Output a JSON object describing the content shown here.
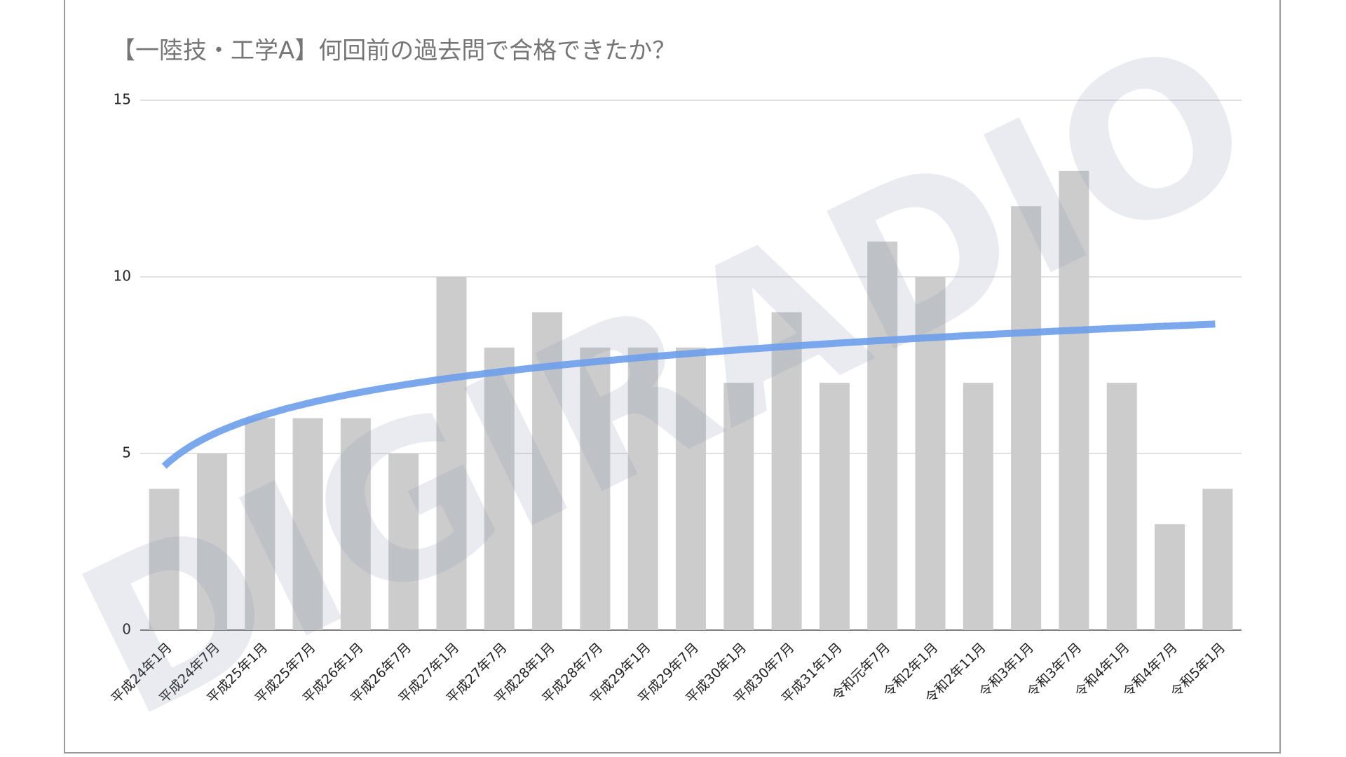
{
  "chart_data": {
    "type": "bar",
    "title": "【一陸技・工学A】何回前の過去問で合格できたか？",
    "categories": [
      "平成24年1月",
      "平成24年7月",
      "平成25年1月",
      "平成25年7月",
      "平成26年1月",
      "平成26年7月",
      "平成27年1月",
      "平成27年7月",
      "平成28年1月",
      "平成28年7月",
      "平成29年1月",
      "平成29年7月",
      "平成30年1月",
      "平成30年7月",
      "平成31年1月",
      "令和元年7月",
      "令和2年1月",
      "令和2年11月",
      "令和3年1月",
      "令和3年7月",
      "令和4年1月",
      "令和4年7月",
      "令和5年1月"
    ],
    "values": [
      4,
      5,
      6,
      6,
      6,
      5,
      10,
      8,
      9,
      8,
      8,
      8,
      7,
      9,
      7,
      11,
      10,
      7,
      12,
      13,
      7,
      3,
      4
    ],
    "color": "#cccccc",
    "ylim": [
      0,
      15
    ],
    "yticks": [
      0,
      5,
      10,
      15
    ],
    "grid": true,
    "trendline": {
      "type": "logarithmic",
      "color": "#6d9eeb"
    },
    "watermark": "DIGIRADIO"
  }
}
